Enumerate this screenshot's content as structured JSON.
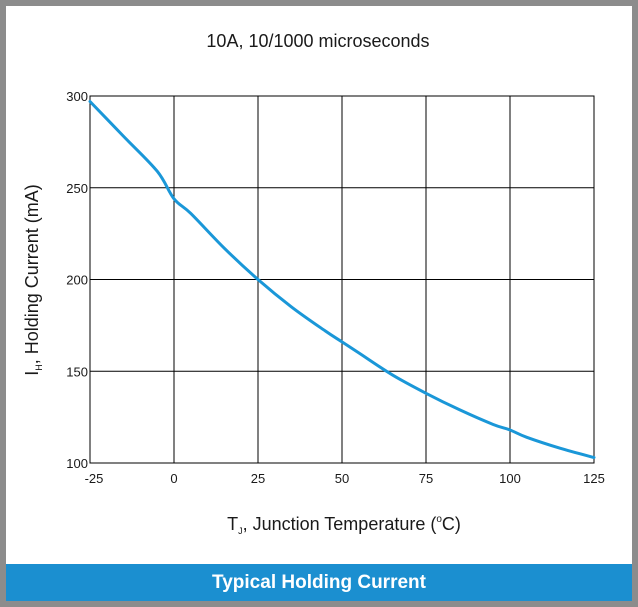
{
  "footer": {
    "title": "Typical Holding Current"
  },
  "colors": {
    "curve": "#1a97d8",
    "banner": "#1b8fd0",
    "grid": "#000000",
    "frame": "#8c8c8c"
  },
  "chart_data": {
    "type": "line",
    "title": "10A, 10/1000 microseconds",
    "xlabel": {
      "main": "T",
      "sub": "J",
      "rest": ", Junction Temperature (",
      "sup": "o",
      "end": "C)"
    },
    "ylabel": {
      "main": "I",
      "sub": "H",
      "rest": ", Holding Current (mA)"
    },
    "xlim": [
      -25,
      125
    ],
    "ylim": [
      100,
      300
    ],
    "xticks": [
      "-25",
      "0",
      "25",
      "50",
      "75",
      "100",
      "125"
    ],
    "xtick_values": [
      -25,
      0,
      25,
      50,
      75,
      100,
      125
    ],
    "yticks": [
      "100",
      "150",
      "200",
      "250",
      "300"
    ],
    "ytick_values": [
      100,
      150,
      200,
      250,
      300
    ],
    "grid": true,
    "series": [
      {
        "x": [
          -25,
          -15,
          -5,
          0,
          5,
          15,
          25,
          35,
          45,
          50,
          55,
          65,
          75,
          85,
          95,
          100,
          105,
          115,
          125
        ],
        "y": [
          297,
          278,
          259,
          244,
          236,
          217,
          200,
          185,
          172,
          166,
          160,
          148,
          138,
          129,
          121,
          118,
          114,
          108,
          103
        ]
      }
    ]
  }
}
